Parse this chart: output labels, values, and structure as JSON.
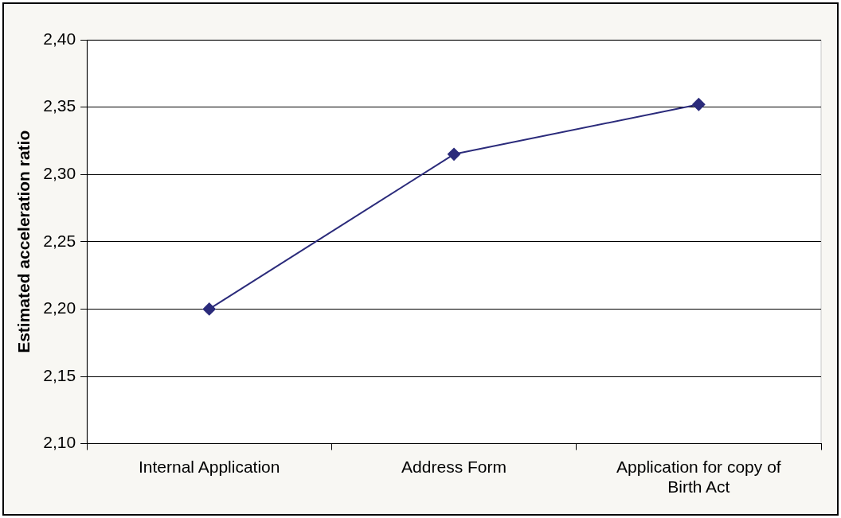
{
  "chart_data": {
    "type": "line",
    "ylabel": "Estimated acceleration ratio",
    "categories": [
      "Internal Application",
      "Address Form",
      "Application for copy of Birth Act"
    ],
    "series": [
      {
        "color": "#2b2b7b",
        "values": [
          2.2,
          2.315,
          2.352
        ]
      }
    ],
    "ylim": [
      2.1,
      2.4
    ],
    "yticks": [
      {
        "value": 2.1,
        "label": "2,10"
      },
      {
        "value": 2.15,
        "label": "2,15"
      },
      {
        "value": 2.2,
        "label": "2,20"
      },
      {
        "value": 2.25,
        "label": "2,25"
      },
      {
        "value": 2.3,
        "label": "2,30"
      },
      {
        "value": 2.35,
        "label": "2,35"
      },
      {
        "value": 2.4,
        "label": "2,40"
      }
    ],
    "grid": "y",
    "legend": false,
    "marker": "diamond",
    "line_style": "solid"
  }
}
